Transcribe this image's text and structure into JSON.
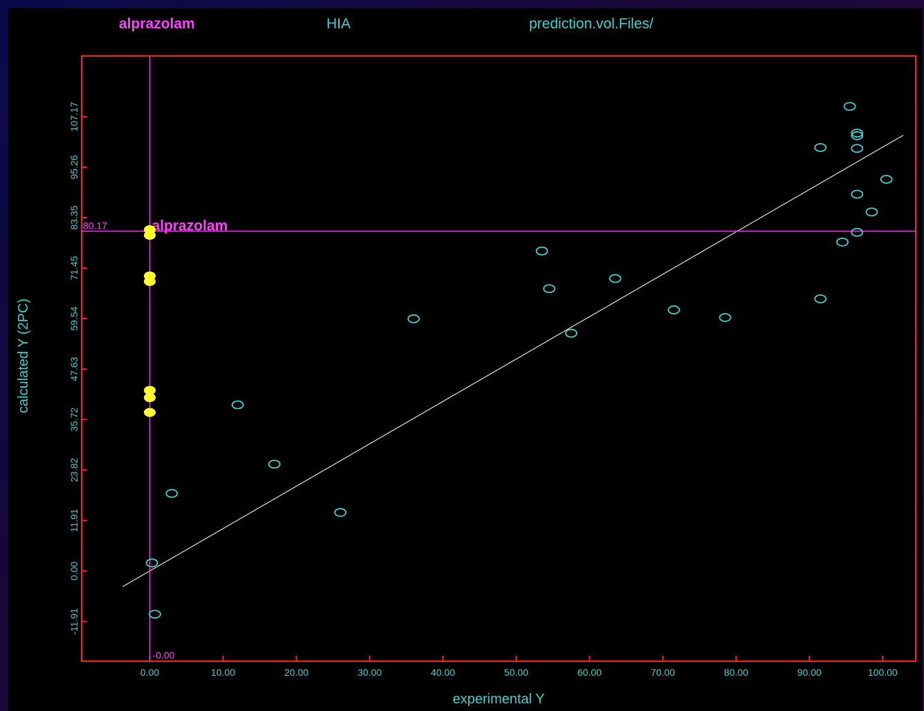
{
  "header": {
    "compound": "alprazolam",
    "property": "HIA",
    "path": "prediction.vol.Files/"
  },
  "colors": {
    "frame": "#ff2020",
    "cursor": "#e040e0",
    "label_magenta": "#ff40ff",
    "axis_text": "#40d0d0",
    "points": "#40d0d0",
    "highlight": "#ffff30",
    "fit_line": "#e8e8c0",
    "background": "#000000"
  },
  "chart_data": {
    "type": "scatter",
    "xlabel": "experimental  Y",
    "ylabel": "calculated  Y  (2PC)",
    "xlim": [
      -9.3,
      104.5
    ],
    "ylim": [
      -21.3,
      121.5
    ],
    "x_ticks": [
      0,
      10,
      20,
      30,
      40,
      50,
      60,
      70,
      80,
      90,
      100
    ],
    "x_tick_labels": [
      "0.00",
      "10.00",
      "20.00",
      "30.00",
      "40.00",
      "50.00",
      "60.00",
      "70.00",
      "80.00",
      "90.00",
      "100.00"
    ],
    "y_ticks": [
      -11.91,
      0,
      11.91,
      23.82,
      35.72,
      47.63,
      59.54,
      71.45,
      83.35,
      95.26,
      107.17
    ],
    "y_tick_labels": [
      "-11.91",
      "0.00",
      "11.91",
      "23.82",
      "35.72",
      "47.63",
      "59.54",
      "71.45",
      "83.35",
      "95.26",
      "107.17"
    ],
    "cursor": {
      "x": 0,
      "y": 80.17,
      "x_label": "-0.00",
      "y_label": "80.17",
      "label": "alprazolam"
    },
    "points": [
      {
        "x": 0.3,
        "y": 1.9
      },
      {
        "x": 0.7,
        "y": -10.2
      },
      {
        "x": 3.0,
        "y": 18.3
      },
      {
        "x": 12.0,
        "y": 39.2
      },
      {
        "x": 17.0,
        "y": 25.2
      },
      {
        "x": 26.0,
        "y": 13.8
      },
      {
        "x": 36.0,
        "y": 59.5
      },
      {
        "x": 53.5,
        "y": 75.5
      },
      {
        "x": 54.5,
        "y": 66.6
      },
      {
        "x": 57.5,
        "y": 56.1
      },
      {
        "x": 63.5,
        "y": 69.0
      },
      {
        "x": 71.5,
        "y": 61.6
      },
      {
        "x": 78.5,
        "y": 59.8
      },
      {
        "x": 91.5,
        "y": 64.2
      },
      {
        "x": 91.5,
        "y": 99.9
      },
      {
        "x": 94.5,
        "y": 77.6
      },
      {
        "x": 95.5,
        "y": 109.6
      },
      {
        "x": 96.5,
        "y": 103.3
      },
      {
        "x": 96.5,
        "y": 102.7
      },
      {
        "x": 96.5,
        "y": 99.7
      },
      {
        "x": 96.5,
        "y": 88.9
      },
      {
        "x": 96.5,
        "y": 79.9
      },
      {
        "x": 98.5,
        "y": 84.7
      },
      {
        "x": 100.5,
        "y": 92.4
      }
    ],
    "highlighted_points": [
      {
        "x": 0,
        "y": 80.5
      },
      {
        "x": 0,
        "y": 79.2
      },
      {
        "x": 0,
        "y": 69.6
      },
      {
        "x": 0,
        "y": 68.3
      },
      {
        "x": 0,
        "y": 42.6
      },
      {
        "x": 0,
        "y": 40.9
      },
      {
        "x": 0,
        "y": 37.4
      }
    ],
    "fit_line": {
      "x1": -3.7,
      "y1": -3.7,
      "x2": 102.8,
      "y2": 102.8
    }
  }
}
